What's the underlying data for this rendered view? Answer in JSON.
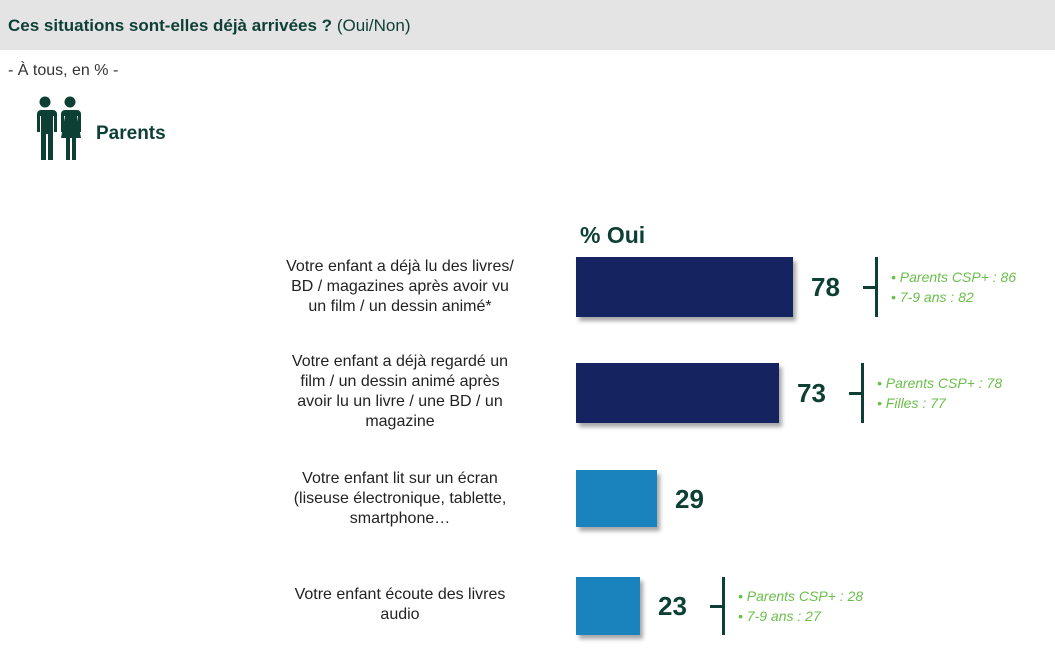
{
  "header": {
    "question": "Ces situations sont-elles déjà arrivées ?",
    "answers": "(Oui/Non)"
  },
  "subtitle": "- À tous, en % -",
  "audience": {
    "label": "Parents",
    "icon": "parents-icon"
  },
  "colors": {
    "dark_bar": "#152461",
    "light_bar": "#1a83bd",
    "value_text": "#0e3f35",
    "detail_text": "#6abf4b"
  },
  "chart_data": {
    "type": "bar",
    "orientation": "horizontal",
    "column_header": "% Oui",
    "categories": [
      "Votre enfant a déjà lu des livres/ BD / magazines après avoir vu un film / un dessin animé*",
      "Votre enfant a déjà regardé un film / un dessin animé après avoir lu un livre / une BD / un magazine",
      "Votre enfant lit sur un écran (liseuse électronique, tablette, smartphone…",
      "Votre enfant écoute des livres audio"
    ],
    "values": [
      78,
      73,
      29,
      23
    ],
    "bar_colors": [
      "#152461",
      "#152461",
      "#1a83bd",
      "#1a83bd"
    ],
    "value_labels": [
      "78",
      "73",
      "29",
      "23"
    ],
    "details": [
      [
        "• Parents CSP+ : 86",
        "• 7-9 ans : 82"
      ],
      [
        "• Parents CSP+ : 78",
        "• Filles : 77"
      ],
      [],
      [
        "• Parents CSP+ : 28",
        "• 7-9 ans : 27"
      ]
    ]
  }
}
